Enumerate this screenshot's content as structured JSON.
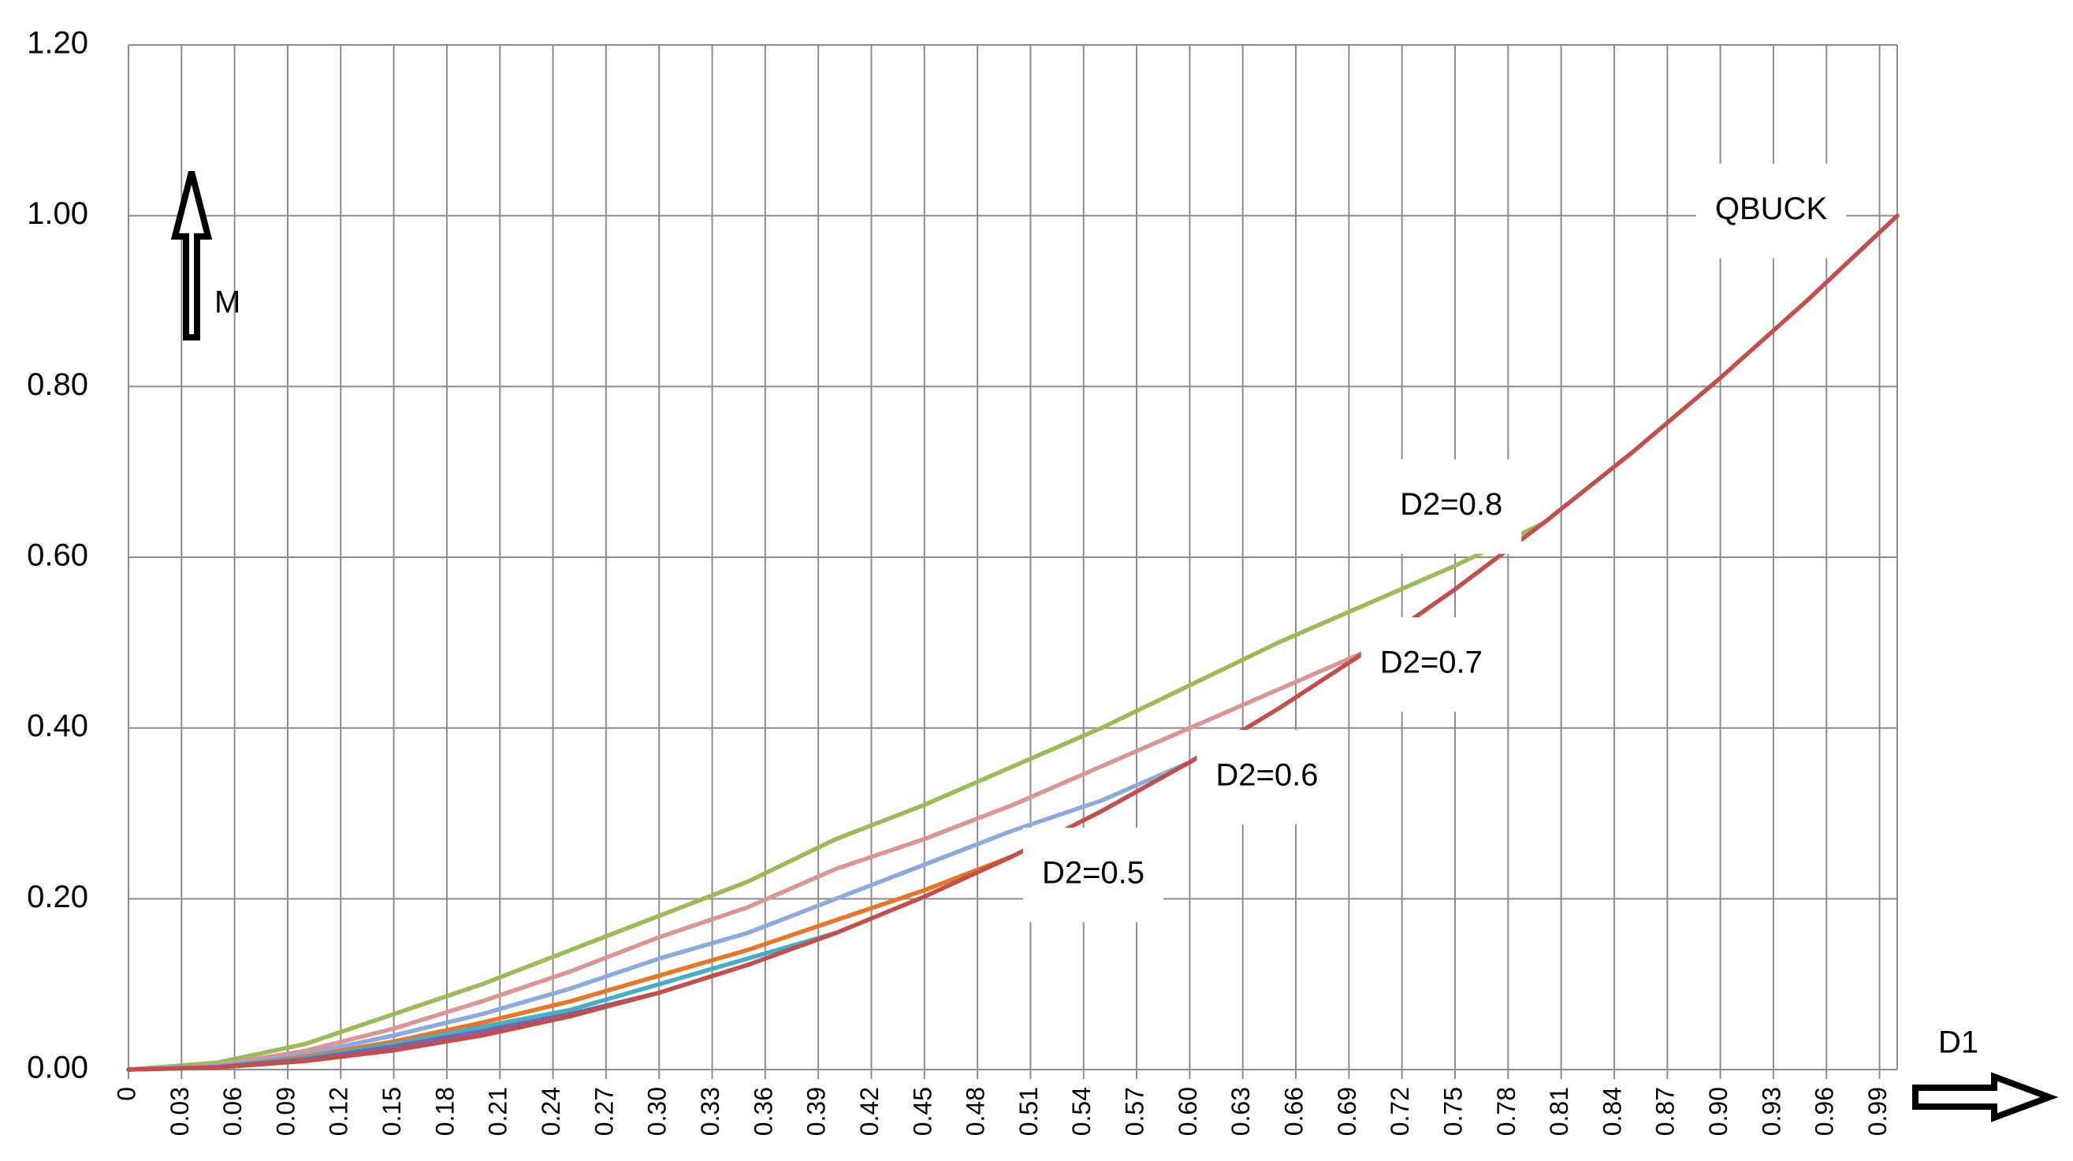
{
  "chart_data": {
    "type": "line",
    "x_label": "D1",
    "y_label": "M",
    "x": [
      0,
      0.05,
      0.1,
      0.15,
      0.2,
      0.25,
      0.3,
      0.35,
      0.4,
      0.45,
      0.5,
      0.55,
      0.6,
      0.65,
      0.7,
      0.75,
      0.8,
      0.85,
      0.9,
      0.95,
      1.0
    ],
    "series": [
      {
        "name": "D2=0.8",
        "color": "#9bbb59",
        "values": [
          0,
          0.008,
          0.03,
          0.065,
          0.1,
          0.14,
          0.18,
          0.22,
          0.27,
          0.31,
          0.355,
          0.4,
          0.45,
          0.5,
          0.545,
          0.59,
          0.64,
          null,
          null,
          null,
          null
        ]
      },
      {
        "name": "D2=0.7",
        "color": "#d99694",
        "values": [
          0,
          0.005,
          0.022,
          0.048,
          0.08,
          0.115,
          0.155,
          0.19,
          0.235,
          0.27,
          0.31,
          0.355,
          0.4,
          0.445,
          0.49,
          null,
          null,
          null,
          null,
          null,
          null
        ]
      },
      {
        "name": "D2=0.6",
        "color": "#8eaadb",
        "values": [
          0,
          0.004,
          0.018,
          0.04,
          0.065,
          0.095,
          0.13,
          0.16,
          0.2,
          0.24,
          0.28,
          0.315,
          0.36,
          null,
          null,
          null,
          null,
          null,
          null,
          null,
          null
        ]
      },
      {
        "name": "D2=0.5",
        "color": "#e4782a",
        "values": [
          0,
          0.003,
          0.015,
          0.033,
          0.055,
          0.08,
          0.11,
          0.14,
          0.175,
          0.21,
          0.25,
          null,
          null,
          null,
          null,
          null,
          null,
          null,
          null,
          null,
          null
        ]
      },
      {
        "color": "#4bacc6",
        "values": [
          0,
          0.003,
          0.013,
          0.03,
          0.05,
          0.07,
          0.1,
          0.13,
          0.16,
          null,
          null,
          null,
          null,
          null,
          null,
          null,
          null,
          null,
          null,
          null,
          null
        ]
      },
      {
        "color": "#8064a2",
        "values": [
          0,
          0.0025,
          0.012,
          0.027,
          0.045,
          0.065,
          0.09,
          null,
          null,
          null,
          null,
          null,
          null,
          null,
          null,
          null,
          null,
          null,
          null,
          null,
          null
        ]
      },
      {
        "name": "QBUCK",
        "color": "#c0504d",
        "values": [
          0,
          0.0025,
          0.01,
          0.0225,
          0.04,
          0.0625,
          0.09,
          0.1225,
          0.16,
          0.2025,
          0.25,
          0.3025,
          0.36,
          0.4225,
          0.49,
          0.5625,
          0.64,
          0.7225,
          0.81,
          0.9025,
          1.0
        ]
      }
    ],
    "xlim": [
      0,
      1.0
    ],
    "ylim": [
      0,
      1.2
    ],
    "xticks": [
      0,
      0.03,
      0.06,
      0.09,
      0.12,
      0.15,
      0.18,
      0.21,
      0.24,
      0.27,
      {
        "value": 0.3,
        "label": "0.30"
      },
      0.33,
      0.36,
      0.39,
      0.42,
      0.45,
      0.48,
      0.51,
      0.54,
      0.57,
      {
        "value": 0.6,
        "label": "0.60"
      },
      0.63,
      0.66,
      0.69,
      0.72,
      0.75,
      0.78,
      0.81,
      0.84,
      0.87,
      {
        "value": 0.9,
        "label": "0.90"
      },
      0.93,
      0.96,
      0.99
    ],
    "yticks": [
      {
        "value": 0,
        "label": "0.00"
      },
      {
        "value": 0.2,
        "label": "0.20"
      },
      {
        "value": 0.4,
        "label": "0.40"
      },
      {
        "value": 0.6,
        "label": "0.60"
      },
      {
        "value": 0.8,
        "label": "0.80"
      },
      {
        "value": 1.0,
        "label": "1.00"
      },
      {
        "value": 1.2,
        "label": "1.20"
      }
    ],
    "grid": true
  }
}
